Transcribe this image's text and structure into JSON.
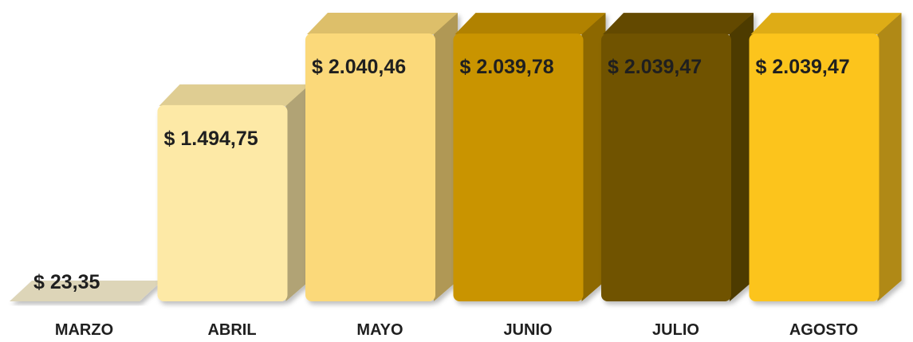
{
  "chart_data": {
    "type": "bar",
    "style": "3d",
    "title": "",
    "xlabel": "",
    "ylabel": "",
    "ylim": [
      0,
      2040.46
    ],
    "grid": false,
    "legend": "none",
    "categories": [
      "MARZO",
      "ABRIL",
      "MAYO",
      "JUNIO",
      "JULIO",
      "AGOSTO"
    ],
    "values": [
      23.35,
      1494.75,
      2040.46,
      2039.78,
      2039.47,
      2039.47
    ],
    "value_labels": [
      "$ 23,35",
      "$ 1.494,75",
      "$ 2.040,46",
      "$ 2.039,78",
      "$ 2.039,47",
      "$ 2.039,47"
    ],
    "colors": [
      "#ddd5b8",
      "#fde9a6",
      "#fbd97a",
      "#c99400",
      "#705300",
      "#fcc41b"
    ]
  }
}
